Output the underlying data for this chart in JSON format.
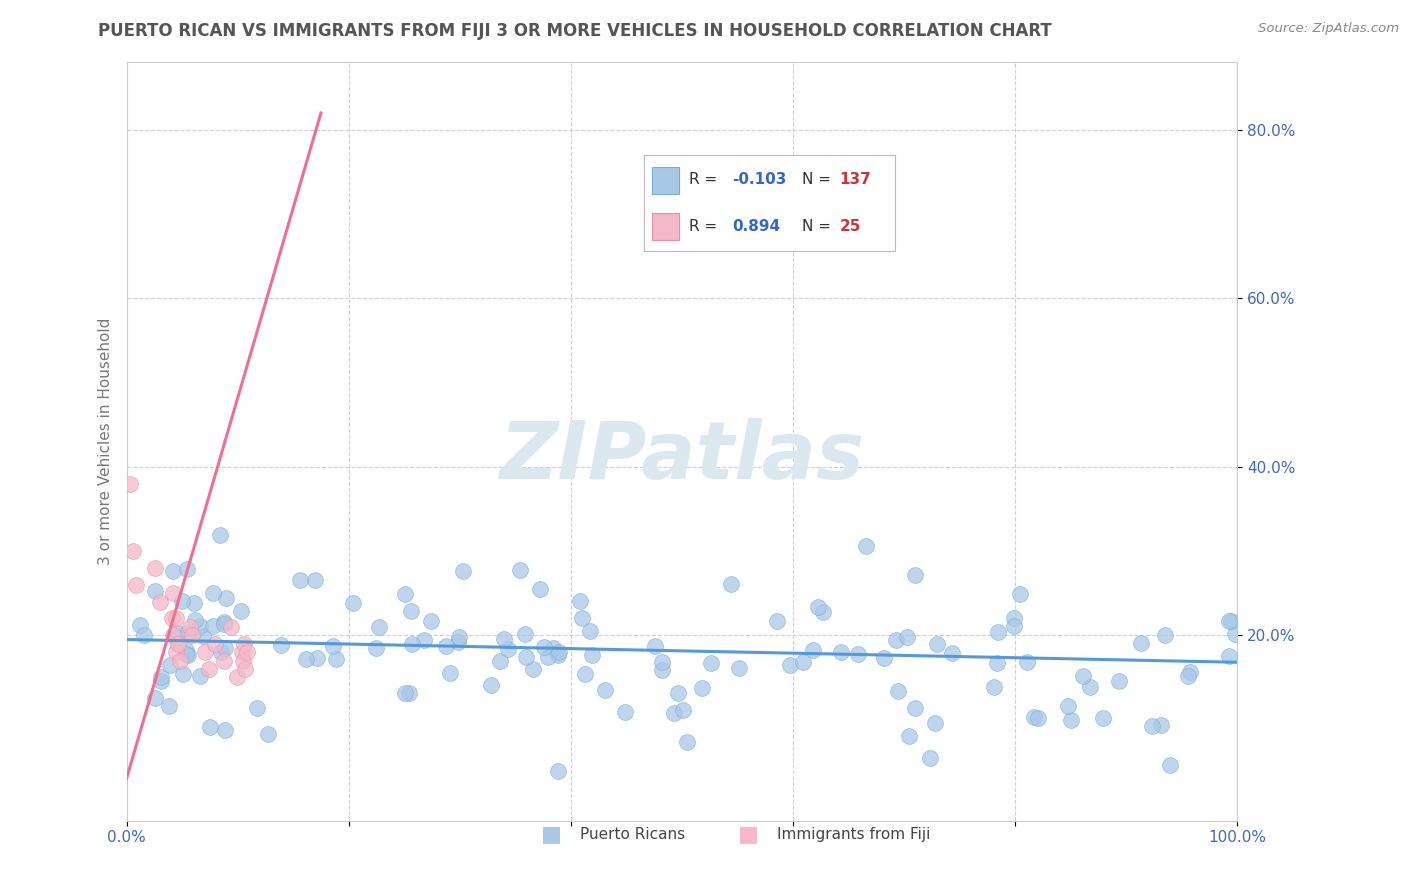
{
  "title": "PUERTO RICAN VS IMMIGRANTS FROM FIJI 3 OR MORE VEHICLES IN HOUSEHOLD CORRELATION CHART",
  "source": "Source: ZipAtlas.com",
  "ylabel": "3 or more Vehicles in Household",
  "xmin": 0.0,
  "xmax": 1.0,
  "ymin": -0.02,
  "ymax": 0.88,
  "xticks": [
    0.0,
    0.2,
    0.4,
    0.6,
    0.8,
    1.0
  ],
  "xticklabels": [
    "0.0%",
    "",
    "",
    "",
    "",
    "100.0%"
  ],
  "yticks": [
    0.2,
    0.4,
    0.6,
    0.8
  ],
  "yticklabels": [
    "20.0%",
    "40.0%",
    "60.0%",
    "80.0%"
  ],
  "scatter_color_blue": "#a8c8e8",
  "scatter_edge_blue": "#7aafd4",
  "scatter_color_pink": "#f4b8c8",
  "scatter_edge_pink": "#e890a8",
  "line_color_blue": "#5599dd",
  "line_color_pink": "#ee7090",
  "blue_line_x0": 0.0,
  "blue_line_x1": 1.0,
  "blue_line_y0": 0.195,
  "blue_line_y1": 0.168,
  "pink_line_x0": 0.0,
  "pink_line_x1": 0.175,
  "pink_line_y0": 0.03,
  "pink_line_y1": 0.82,
  "watermark_text": "ZIPatlas",
  "watermark_color": "#dce8f0",
  "background_color": "#ffffff",
  "grid_color": "#cccccc",
  "title_color": "#555555",
  "axis_label_color": "#777777",
  "tick_label_color": "#4466bb",
  "legend_r_color": "#3366cc",
  "legend_n_color": "#cc3333",
  "legend_r1": "-0.103",
  "legend_n1": "137",
  "legend_r2": "0.894",
  "legend_n2": "25"
}
